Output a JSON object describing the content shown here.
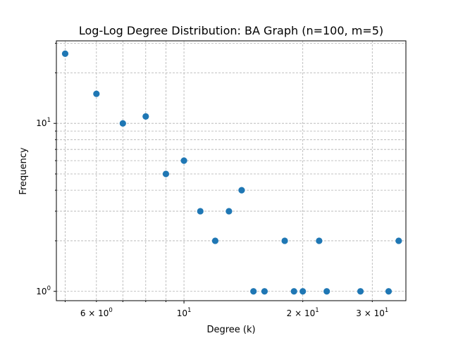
{
  "chart_data": {
    "type": "scatter",
    "title": "Log-Log Degree Distribution: BA Graph (n=100, m=5)",
    "xlabel": "Degree (k)",
    "ylabel": "Frequency",
    "xscale": "log",
    "yscale": "log",
    "xlim": [
      4.75,
      36.5
    ],
    "ylim": [
      0.88,
      31
    ],
    "grid": true,
    "marker_color": "#1f77b4",
    "x_ticks": [
      {
        "value": 6,
        "base": "6 × 10",
        "exp": "0"
      },
      {
        "value": 10,
        "base": "10",
        "exp": "1"
      },
      {
        "value": 20,
        "base": "2 × 10",
        "exp": "1"
      },
      {
        "value": 30,
        "base": "3 × 10",
        "exp": "1"
      }
    ],
    "y_ticks": [
      {
        "value": 1,
        "base": "10",
        "exp": "0"
      },
      {
        "value": 10,
        "base": "10",
        "exp": "1"
      }
    ],
    "points": [
      {
        "x": 5,
        "y": 26
      },
      {
        "x": 6,
        "y": 15
      },
      {
        "x": 7,
        "y": 10
      },
      {
        "x": 8,
        "y": 11
      },
      {
        "x": 9,
        "y": 5
      },
      {
        "x": 10,
        "y": 6
      },
      {
        "x": 11,
        "y": 3
      },
      {
        "x": 12,
        "y": 2
      },
      {
        "x": 13,
        "y": 3
      },
      {
        "x": 14,
        "y": 4
      },
      {
        "x": 15,
        "y": 1
      },
      {
        "x": 16,
        "y": 1
      },
      {
        "x": 18,
        "y": 2
      },
      {
        "x": 19,
        "y": 1
      },
      {
        "x": 20,
        "y": 1
      },
      {
        "x": 22,
        "y": 2
      },
      {
        "x": 23,
        "y": 1
      },
      {
        "x": 28,
        "y": 1
      },
      {
        "x": 33,
        "y": 1
      },
      {
        "x": 35,
        "y": 2
      }
    ]
  }
}
